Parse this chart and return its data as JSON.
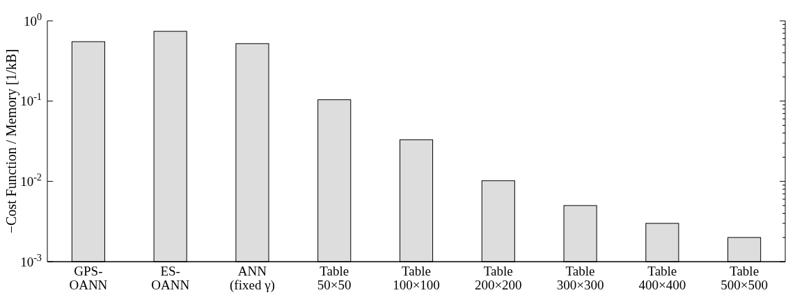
{
  "chart_data": {
    "type": "bar",
    "ylabel": "−Cost Function / Memory [1/kB]",
    "categories": [
      "GPS-\nOANN",
      "ES-\nOANN",
      "ANN\n(fixed γ)",
      "Table\n50×50",
      "Table\n100×100",
      "Table\n200×200",
      "Table\n300×300",
      "Table\n400×400",
      "Table\n500×500"
    ],
    "values": [
      0.55,
      0.74,
      0.52,
      0.104,
      0.033,
      0.0102,
      0.005,
      0.003,
      0.002
    ],
    "color": "#dddddd",
    "log": true,
    "ylim": [
      0.001,
      1
    ],
    "yticks": [
      {
        "value": 0.001,
        "label": "10$^{-3}$"
      },
      {
        "value": 0.01,
        "label": "10$^{-2}$"
      },
      {
        "value": 0.1,
        "label": "10$^{-1}$"
      },
      {
        "value": 1,
        "label": "10$^{0}$"
      }
    ],
    "grid": false
  }
}
